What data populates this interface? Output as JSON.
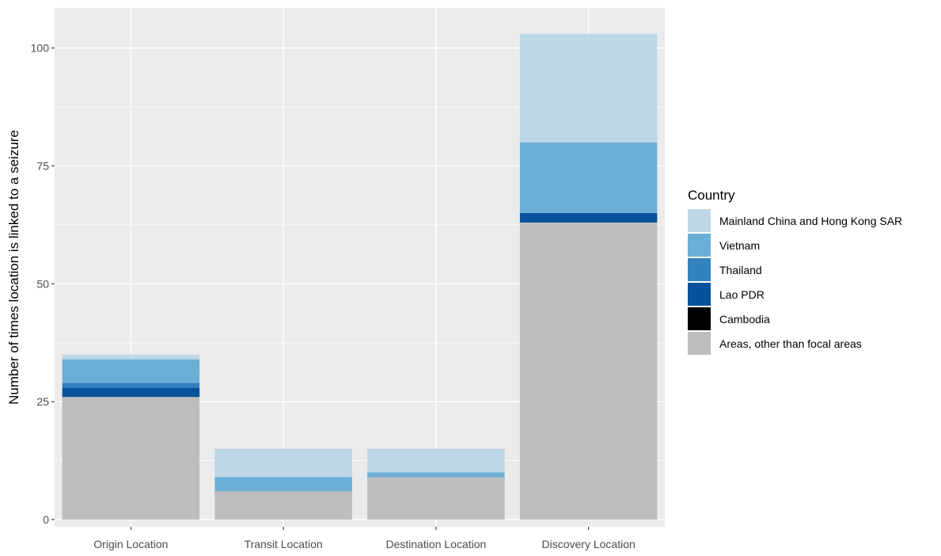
{
  "chart_data": {
    "type": "bar",
    "stacked": true,
    "title": "",
    "xlabel": "",
    "ylabel": "Number of times location is linked to a seizure",
    "categories": [
      "Origin Location",
      "Transit Location",
      "Destination Location",
      "Discovery Location"
    ],
    "ylim": [
      -1.5,
      108.5
    ],
    "yticks": [
      0,
      25,
      50,
      75,
      100
    ],
    "grid": true,
    "legend": {
      "title": "Country",
      "position": "right"
    },
    "series": [
      {
        "name": "Areas, other than focal areas",
        "color": "#bdbdbd",
        "values": [
          26,
          6,
          9,
          63
        ]
      },
      {
        "name": "Cambodia",
        "color": "#000000",
        "values": [
          0,
          0,
          0,
          0
        ]
      },
      {
        "name": "Lao PDR",
        "color": "#08519c",
        "values": [
          2,
          0,
          0,
          2
        ]
      },
      {
        "name": "Thailand",
        "color": "#3182bd",
        "values": [
          1,
          0,
          0,
          0
        ]
      },
      {
        "name": "Vietnam",
        "color": "#6baed6",
        "values": [
          5,
          3,
          1,
          15
        ]
      },
      {
        "name": "Mainland China and Hong Kong SAR",
        "color": "#bdd7e7",
        "values": [
          1,
          6,
          5,
          23
        ]
      }
    ],
    "legend_order": [
      "Mainland China and Hong Kong SAR",
      "Vietnam",
      "Thailand",
      "Lao PDR",
      "Cambodia",
      "Areas, other than focal areas"
    ],
    "colors": {
      "panel": "#ebebeb",
      "grid": "#ffffff"
    }
  }
}
